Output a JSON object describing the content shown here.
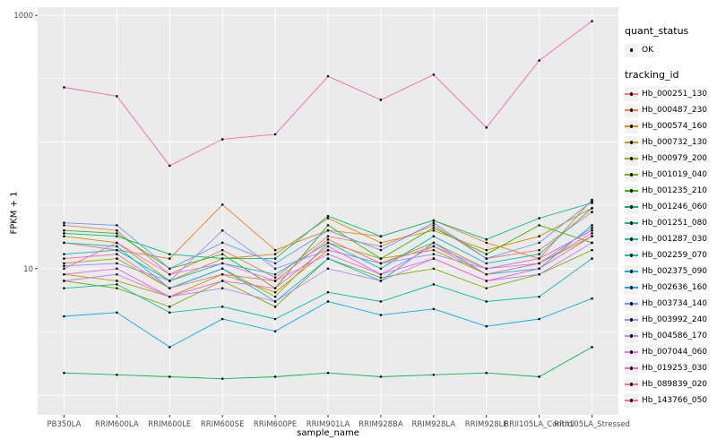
{
  "chart": {
    "y_axis_title": "FPKM + 1",
    "x_axis_title": "sample_name",
    "panel_bg": "#EBEBEB",
    "grid_color": "#FFFFFF",
    "tick_text_color": "#4D4D4D",
    "y_ticks": [
      {
        "value": 10,
        "label": "10"
      },
      {
        "value": 1000,
        "label": "1000"
      }
    ]
  },
  "legend": {
    "quant_title": "quant_status",
    "quant_items": [
      {
        "label": "OK"
      }
    ],
    "tracking_title": "tracking_id"
  },
  "chart_data": {
    "type": "line",
    "y_scale": "log10",
    "ylim": [
      0.7,
      1160
    ],
    "title": "",
    "xlabel": "sample_name",
    "ylabel": "FPKM + 1",
    "grid": true,
    "legend_position": "right",
    "point_color": "#000000",
    "x_categories": [
      "PB350LA",
      "RRIM600LA",
      "RRIM600LE",
      "RRIM600SE",
      "RRIM600PE",
      "RRIM901LA",
      "RRIM928BA",
      "RRIM928LA",
      "RRIM928LE",
      "RRII105LA_Control",
      "RRII105LA_Stressed"
    ],
    "series": [
      {
        "name": "Hb_000251_130",
        "color": "#F8766D",
        "values": [
          22,
          20,
          9,
          14,
          8.5,
          18,
          15,
          22,
          12,
          14,
          28
        ]
      },
      {
        "name": "Hb_000487_230",
        "color": "#EA8331",
        "values": [
          16,
          14,
          12,
          32,
          14,
          20,
          18,
          24,
          16,
          12,
          35
        ]
      },
      {
        "name": "Hb_000574_160",
        "color": "#D89000",
        "values": [
          18,
          16,
          8,
          12,
          13,
          25,
          16,
          20,
          14,
          18,
          30
        ]
      },
      {
        "name": "Hb_000732_130",
        "color": "#C09B00",
        "values": [
          9,
          8,
          6,
          9,
          6.5,
          14,
          11,
          16,
          10,
          12,
          20
        ]
      },
      {
        "name": "Hb_000979_200",
        "color": "#A3A500",
        "values": [
          11,
          12,
          7,
          10,
          6,
          16,
          12,
          14,
          9,
          11,
          18
        ]
      },
      {
        "name": "Hb_001019_040",
        "color": "#7CAE00",
        "values": [
          8,
          7,
          5,
          8,
          5,
          12,
          8.5,
          10,
          7,
          9,
          14
        ]
      },
      {
        "name": "Hb_001235_210",
        "color": "#39B600",
        "values": [
          20,
          19,
          10,
          13,
          7,
          22,
          12,
          21,
          13,
          22,
          16
        ]
      },
      {
        "name": "Hb_001246_060",
        "color": "#00BB4E",
        "values": [
          1.5,
          1.45,
          1.4,
          1.35,
          1.4,
          1.5,
          1.4,
          1.45,
          1.5,
          1.4,
          2.4
        ]
      },
      {
        "name": "Hb_001251_080",
        "color": "#00BF7D",
        "values": [
          19,
          18,
          13,
          12,
          12,
          26,
          18,
          24,
          17,
          25,
          33
        ]
      },
      {
        "name": "Hb_001287_030",
        "color": "#00C1A7",
        "values": [
          7,
          7.5,
          4.5,
          5,
          4,
          6.5,
          5.5,
          7.5,
          5.5,
          6,
          12
        ]
      },
      {
        "name": "Hb_002259_070",
        "color": "#00BFC4",
        "values": [
          13,
          14,
          8,
          11,
          9,
          16,
          10,
          18,
          11,
          13,
          30
        ]
      },
      {
        "name": "Hb_002375_090",
        "color": "#00B8E5",
        "values": [
          16,
          15,
          7,
          10,
          5.5,
          12,
          8,
          16,
          9,
          10,
          22
        ]
      },
      {
        "name": "Hb_002636_160",
        "color": "#00ACFC",
        "values": [
          4.2,
          4.5,
          2.4,
          4,
          3.2,
          5.5,
          4.3,
          4.8,
          3.5,
          4,
          5.8
        ]
      },
      {
        "name": "Hb_003734_140",
        "color": "#619CFF",
        "values": [
          23,
          22,
          10,
          16,
          11,
          20,
          14,
          23,
          12,
          16,
          34
        ]
      },
      {
        "name": "Hb_003992_240",
        "color": "#9590FF",
        "values": [
          10.5,
          11,
          8,
          20,
          10,
          14,
          11,
          13,
          10,
          11,
          21
        ]
      },
      {
        "name": "Hb_004586_170",
        "color": "#B983FF",
        "values": [
          8,
          9,
          6,
          7,
          5.5,
          10,
          8,
          12,
          8,
          9,
          16
        ]
      },
      {
        "name": "Hb_007044_060",
        "color": "#E76BF3",
        "values": [
          10,
          16,
          9,
          11,
          8,
          13,
          9,
          15,
          10,
          12,
          20
        ]
      },
      {
        "name": "Hb_019253_030",
        "color": "#FD61D1",
        "values": [
          9,
          10,
          6,
          8,
          7,
          15,
          9,
          12,
          8,
          10,
          18
        ]
      },
      {
        "name": "Hb_089839_020",
        "color": "#FF67A4",
        "values": [
          270,
          230,
          65,
          105,
          115,
          330,
          215,
          340,
          130,
          440,
          900
        ]
      },
      {
        "name": "Hb_143766_050",
        "color": "#FF6C91",
        "values": [
          12,
          13,
          7,
          9,
          8,
          17,
          11,
          15,
          9,
          11,
          19
        ]
      }
    ]
  }
}
